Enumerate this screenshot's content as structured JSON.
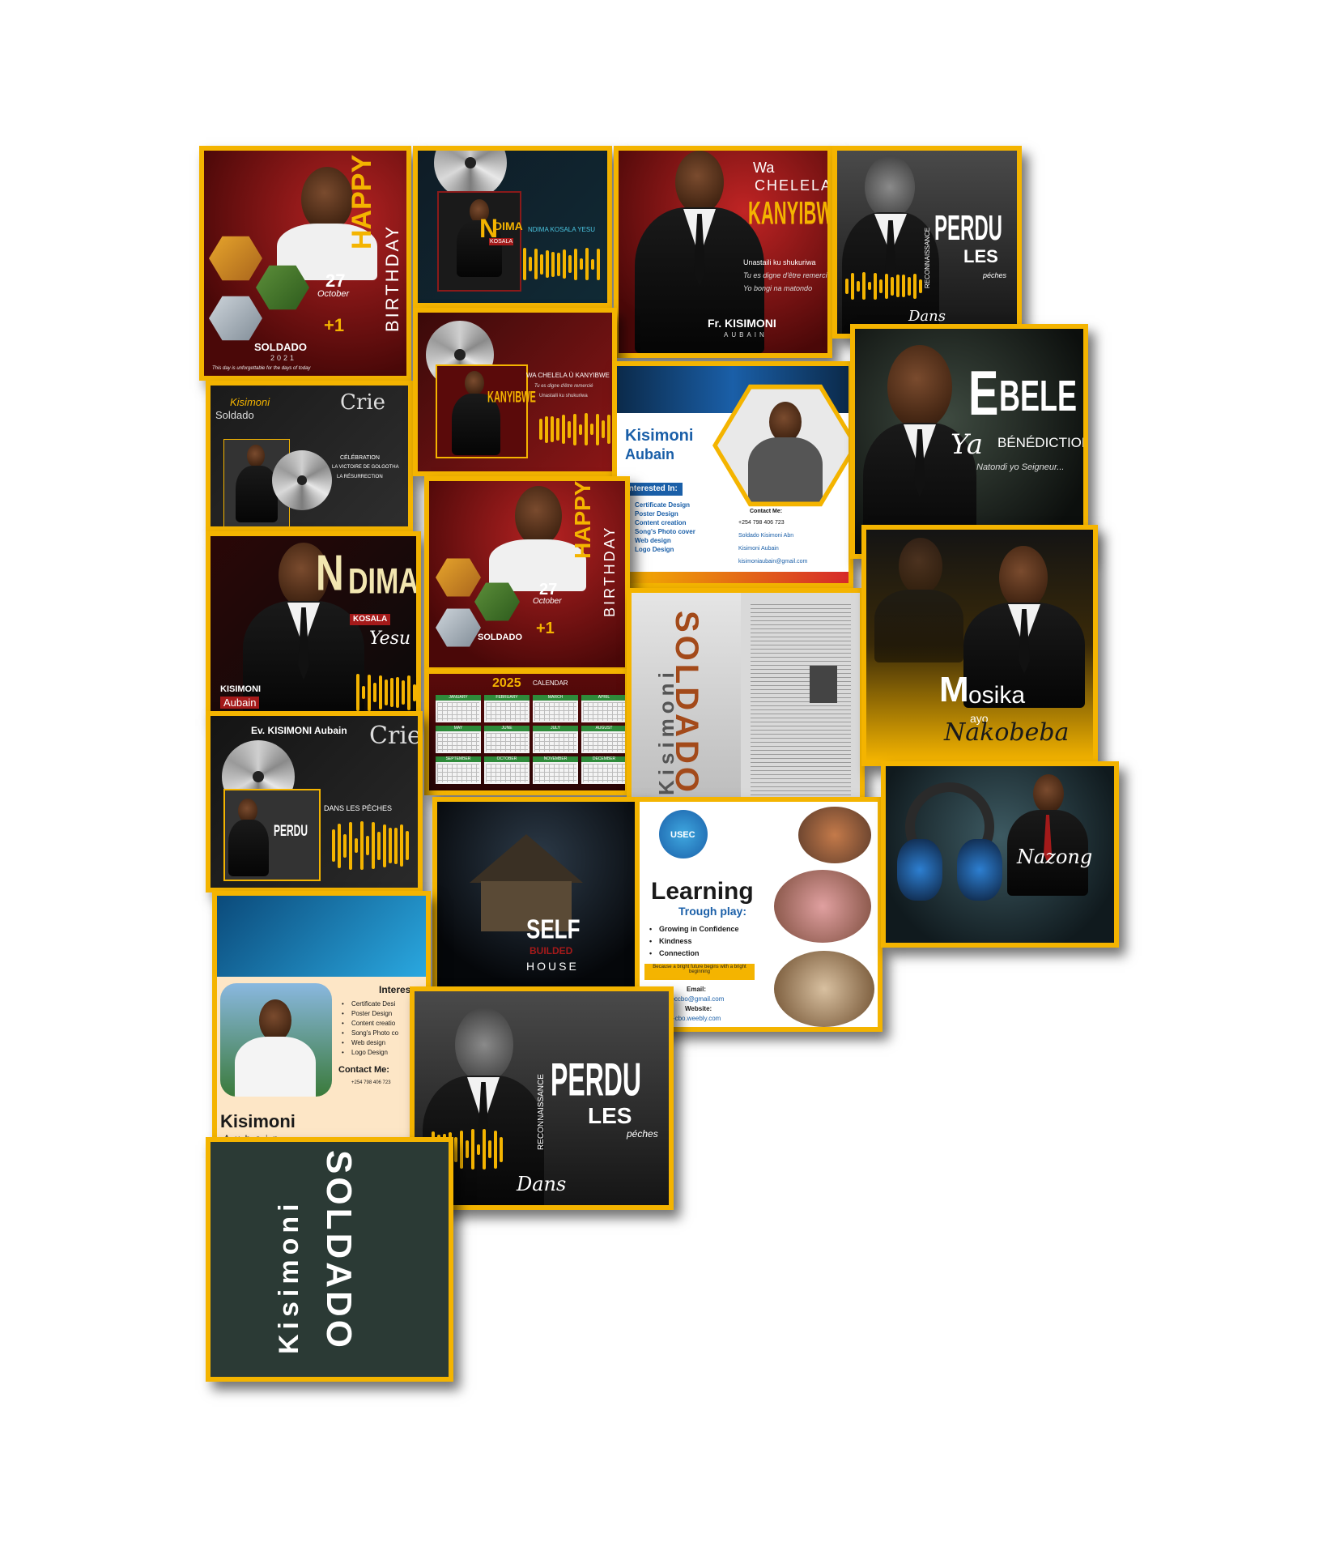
{
  "colors": {
    "frame": "#f4b400",
    "dark": "#1b1b1b",
    "red": "#7d1414",
    "accent_blue": "#1a5fa8"
  },
  "cards": {
    "birthday": {
      "happy": "HAPPY",
      "birthday": "BIRTHDAY",
      "day": "27",
      "month": "October",
      "plus": "+1",
      "name": "SOLDADO",
      "year": "2021",
      "footer": "This day is unforgettable for the days of today"
    },
    "ndima_album": {
      "title_n": "N",
      "title": "DIMA",
      "kosala": "KOSALA",
      "yesu": "Yesu",
      "side": "NDIMA KOSALA YESU",
      "artist": "KISIMONI Aubain"
    },
    "wachelela": {
      "wa": "Wa",
      "chelela": "CHELELA",
      "kanyibwe": "KANYIBWE",
      "line1": "Unastaili ku shukuriwa",
      "line2": "Tu es digne d'être remercié",
      "line3": "Yo bongi na matondo",
      "name": "Fr. KISIMONI",
      "sub": "AUBAIN"
    },
    "perdu_top": {
      "reconnaissance": "RECONNAISSANCE",
      "perdu": "PERDU",
      "les": "LES",
      "dans": "Dans",
      "peches": "péches"
    },
    "kisimoni_crie": {
      "name": "Kisimoni",
      "soldado": "Soldado",
      "crie": "Crie",
      "c1": "CÉLÉBRATION",
      "c2": "LA VICTOIRE DE GOLGOTHA",
      "c3": "LA RÉSURRECTION"
    },
    "wachelela_album": {
      "title": "WA CHELELA Ù KANYIBWE",
      "line1": "Tu es digne d'être remercié",
      "line2": "Unastaili ku shukuriwa"
    },
    "business_card": {
      "name": "Kisimoni",
      "surname": "Aubain",
      "interested": "Interested In:",
      "items": [
        "Certificate Design",
        "Poster Design",
        "Content creation",
        "Song's Photo cover",
        "Web design",
        "Logo Design"
      ],
      "contact": "Contact Me:",
      "phone": "+254 798 406 723",
      "facebook": "Soldado Kisimoni Abn",
      "linkedin": "Kisimoni Aubain",
      "email": "kisimoniaubain@gmail.com"
    },
    "ebele": {
      "e": "E",
      "bele": "BELE",
      "ya": "Ya",
      "benediction": "BÉNÉDICTION",
      "sub": "Natondi yo Seigneur..."
    },
    "birthday2": {
      "happy": "HAPPY",
      "birthday": "BIRTHDAY",
      "day": "27",
      "month": "October",
      "plus": "+1",
      "name": "SOLDADO"
    },
    "ndima_portrait": {
      "n": "N",
      "dima": "DIMA",
      "kosala": "KOSALA",
      "yesu": "Yesu",
      "name": "KISIMONI",
      "sub": "Aubain"
    },
    "calendar": {
      "year": "2025",
      "label": "CALENDAR",
      "months": [
        "JANUARY",
        "FEBRUARY",
        "MARCH",
        "APRIL",
        "MAY",
        "JUNE",
        "JULY",
        "AUGUST",
        "SEPTEMBER",
        "OCTOBER",
        "NOVEMBER",
        "DECEMBER"
      ]
    },
    "soldado_mag": {
      "kisimoni": "Kisimoni",
      "soldado": "SOLDADO"
    },
    "mosika": {
      "m": "M",
      "osika": "osika",
      "ayo": "ayo",
      "nakobeba": "Nakobeba"
    },
    "premiere_crie": {
      "ev": "Ev. KISIMONI Aubain",
      "crie": "Crie",
      "perdu": "PERDU",
      "dans": "DANS LES PÉCHES"
    },
    "self_house": {
      "self": "SELF",
      "builded": "BUILDED",
      "house": "HOUSE"
    },
    "usec": {
      "logo": "USEC",
      "learning": "Learning",
      "trough": "Trough play:",
      "items": [
        "Growing in Confidence",
        "Kindness",
        "Connection"
      ],
      "tagline": "Because a bright future begins with a bright beginning",
      "email_label": "Email:",
      "email": "useccbo@gmail.com",
      "website_label": "Website:",
      "website": "usec-cbo.weebly.com"
    },
    "nazong": {
      "title": "Nazong"
    },
    "business_card2": {
      "interest": "Interes",
      "items": [
        "Certificate Desi",
        "Poster Design",
        "Content creatio",
        "Song's Photo co",
        "Web design",
        "Logo Design"
      ],
      "contact": "Contact Me:",
      "phone": "+254 798 406 723",
      "name": "Kisimoni",
      "surname": "Aubain"
    },
    "perdu_bottom": {
      "reconnaissance": "RECONNAISSANCE",
      "perdu": "PERDU",
      "les": "LES",
      "dans": "Dans",
      "peches": "péches"
    },
    "soldado_vertical": {
      "kisimoni": "Kisimoni",
      "soldado": "SOLDADO"
    }
  }
}
